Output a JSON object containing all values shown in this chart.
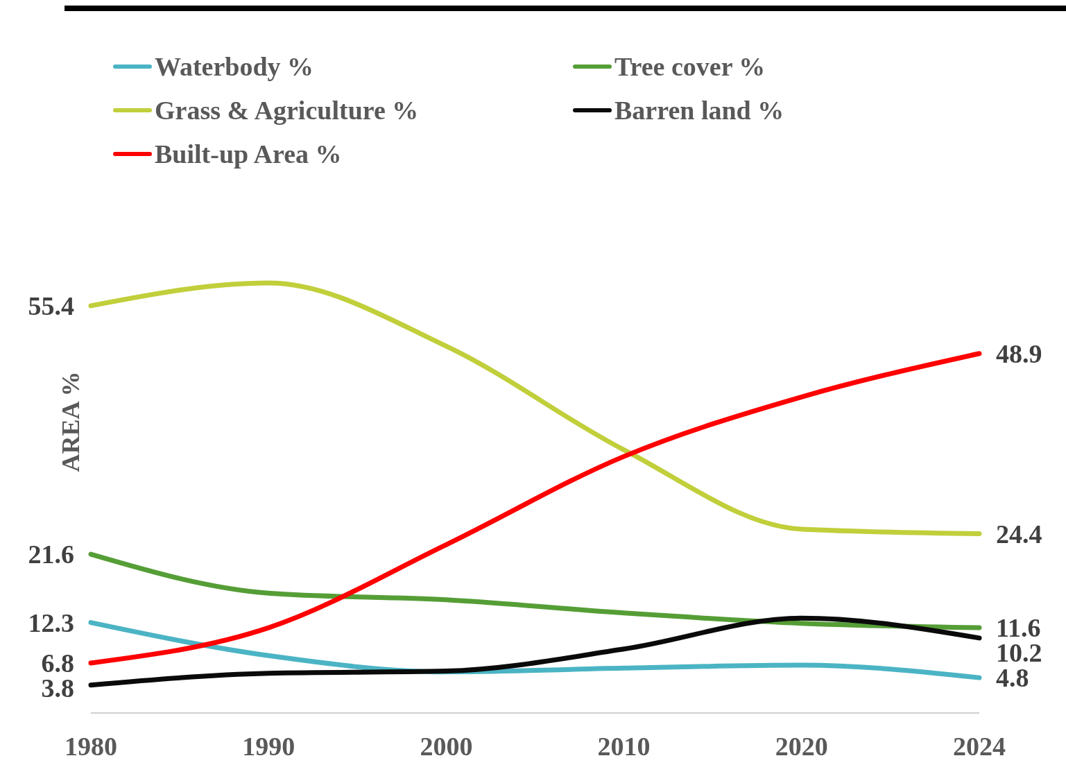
{
  "chart_data": {
    "type": "line",
    "ylabel": "AREA %",
    "categories": [
      "1980",
      "1990",
      "2000",
      "2010",
      "2020",
      "2024"
    ],
    "tick_labels": "x",
    "grid": false,
    "legend": "top left",
    "marker": "none",
    "line_style": "solid",
    "series": [
      {
        "name": "Waterbody %",
        "color": "#4bb4c4",
        "values": [
          12.3,
          7.8,
          5.6,
          6.1,
          6.5,
          4.8
        ],
        "value_labels": [
          "12.3",
          null,
          null,
          null,
          null,
          "4.8"
        ]
      },
      {
        "name": "Tree cover %",
        "color": "#559e36",
        "values": [
          21.6,
          16.3,
          15.4,
          13.6,
          12.2,
          11.6
        ],
        "value_labels": [
          "21.6",
          null,
          null,
          null,
          null,
          "11.6"
        ]
      },
      {
        "name": "Grass & Agriculture %",
        "color": "#c0cf3a",
        "values": [
          55.4,
          58.5,
          49.9,
          35.8,
          25.0,
          24.4
        ],
        "value_labels": [
          "55.4",
          null,
          null,
          null,
          null,
          "24.4"
        ]
      },
      {
        "name": "Barren land %",
        "color": "#0a0a0a",
        "values": [
          3.8,
          5.4,
          5.7,
          8.7,
          12.9,
          10.2
        ],
        "value_labels": [
          "3.8",
          null,
          null,
          null,
          null,
          "10.2"
        ]
      },
      {
        "name": "Built-up Area %",
        "color": "#ff0000",
        "values": [
          6.8,
          11.6,
          22.9,
          34.9,
          43.0,
          48.9
        ],
        "value_labels": [
          "6.8",
          null,
          null,
          null,
          null,
          "48.9"
        ]
      }
    ]
  }
}
